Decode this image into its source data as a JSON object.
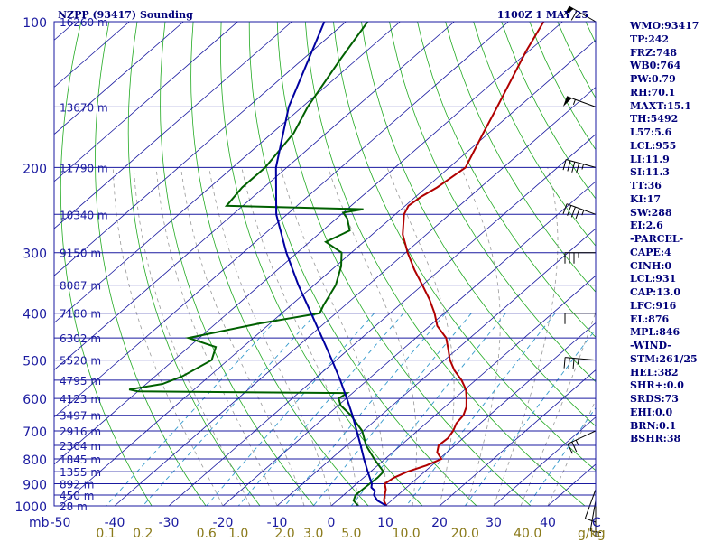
{
  "chart_data": {
    "type": "line",
    "chart_kind": "Skew-T log-P atmospheric sounding",
    "title_left": "NZPP (93417) Sounding",
    "title_right": "1100Z  1 MAY 25",
    "y_axis_unit": "mb",
    "pressure_levels": [
      100,
      200,
      300,
      400,
      500,
      600,
      700,
      800,
      900,
      1000
    ],
    "height_labels": [
      {
        "p": 100,
        "label": "16260 m"
      },
      {
        "p": 150,
        "label": "13670 m"
      },
      {
        "p": 200,
        "label": "11790 m"
      },
      {
        "p": 250,
        "label": "10340 m"
      },
      {
        "p": 300,
        "label": "9150 m"
      },
      {
        "p": 350,
        "label": "8087 m"
      },
      {
        "p": 400,
        "label": "7180 m"
      },
      {
        "p": 450,
        "label": "6302 m"
      },
      {
        "p": 500,
        "label": "5520 m"
      },
      {
        "p": 550,
        "label": "4795 m"
      },
      {
        "p": 600,
        "label": "4123 m"
      },
      {
        "p": 650,
        "label": "3497 m"
      },
      {
        "p": 700,
        "label": "2916 m"
      },
      {
        "p": 750,
        "label": "2364 m"
      },
      {
        "p": 800,
        "label": "1845 m"
      },
      {
        "p": 850,
        "label": "1355 m"
      },
      {
        "p": 900,
        "label": "892 m"
      },
      {
        "p": 950,
        "label": "450 m"
      },
      {
        "p": 1000,
        "label": "28 m"
      }
    ],
    "temperature_ticks": [
      -50,
      -40,
      -30,
      -20,
      -10,
      0,
      10,
      20,
      30,
      40
    ],
    "temperature_tick_labels": [
      "-50",
      "-40",
      "-30",
      "-20",
      "-10",
      "0",
      "10",
      "20",
      "30",
      "40"
    ],
    "temperature_unit": "C",
    "mixing_ratio_labels": [
      "0.1",
      "0.2",
      "0.6",
      "1.0",
      "2.0",
      "3.0",
      "5.0",
      "10.0",
      "20.0",
      "40.0"
    ],
    "mixing_ratio_values": [
      0.1,
      0.2,
      0.6,
      1.0,
      2.0,
      3.0,
      5.0,
      10.0,
      20.0,
      40.0
    ],
    "mixing_ratio_unit": "g/kg",
    "temp_range": [
      -50,
      50
    ],
    "pressure_range": [
      100,
      1000
    ],
    "series": [
      {
        "key": "temperature",
        "color": "#b00000",
        "points": [
          [
            1000,
            10.2
          ],
          [
            975,
            8.6
          ],
          [
            950,
            7.6
          ],
          [
            925,
            6.6
          ],
          [
            900,
            5.2
          ],
          [
            875,
            5.6
          ],
          [
            850,
            6.8
          ],
          [
            825,
            9.0
          ],
          [
            800,
            10.4
          ],
          [
            775,
            8.2
          ],
          [
            750,
            7.0
          ],
          [
            725,
            7.2
          ],
          [
            700,
            6.6
          ],
          [
            675,
            5.6
          ],
          [
            650,
            5.2
          ],
          [
            625,
            4.0
          ],
          [
            600,
            2.2
          ],
          [
            575,
            0.2
          ],
          [
            550,
            -2.6
          ],
          [
            525,
            -6.0
          ],
          [
            500,
            -9.0
          ],
          [
            475,
            -11.6
          ],
          [
            450,
            -14.4
          ],
          [
            425,
            -18.6
          ],
          [
            400,
            -21.8
          ],
          [
            375,
            -25.6
          ],
          [
            350,
            -30.0
          ],
          [
            325,
            -34.8
          ],
          [
            300,
            -39.6
          ],
          [
            275,
            -44.4
          ],
          [
            250,
            -48.4
          ],
          [
            240,
            -49.4
          ],
          [
            230,
            -49.0
          ],
          [
            220,
            -48.0
          ],
          [
            200,
            -47.0
          ],
          [
            170,
            -51.0
          ],
          [
            150,
            -54.0
          ],
          [
            130,
            -57.5
          ],
          [
            115,
            -60.5
          ],
          [
            100,
            -63.5
          ]
        ]
      },
      {
        "key": "dewpoint",
        "color": "#006000",
        "points": [
          [
            1000,
            5.0
          ],
          [
            975,
            3.0
          ],
          [
            950,
            2.2
          ],
          [
            900,
            2.4
          ],
          [
            875,
            2.6
          ],
          [
            850,
            2.4
          ],
          [
            800,
            -2.0
          ],
          [
            750,
            -6.4
          ],
          [
            700,
            -10.2
          ],
          [
            650,
            -15.6
          ],
          [
            620,
            -19.6
          ],
          [
            600,
            -21.4
          ],
          [
            585,
            -21.0
          ],
          [
            580,
            -60.0
          ],
          [
            575,
            -62.0
          ],
          [
            560,
            -57.0
          ],
          [
            540,
            -55.0
          ],
          [
            500,
            -53.0
          ],
          [
            470,
            -55.0
          ],
          [
            450,
            -62.0
          ],
          [
            420,
            -52.0
          ],
          [
            400,
            -43.0
          ],
          [
            385,
            -44.0
          ],
          [
            350,
            -46.0
          ],
          [
            320,
            -49.0
          ],
          [
            300,
            -51.8
          ],
          [
            285,
            -57.0
          ],
          [
            270,
            -55.0
          ],
          [
            255,
            -58.0
          ],
          [
            248,
            -60.0
          ],
          [
            244,
            -57.0
          ],
          [
            240,
            -83.0
          ],
          [
            220,
            -84.0
          ],
          [
            200,
            -84.0
          ],
          [
            170,
            -86.0
          ],
          [
            150,
            -89.0
          ],
          [
            120,
            -93.0
          ],
          [
            100,
            -96.0
          ]
        ]
      },
      {
        "key": "parcel",
        "color": "#0000a0",
        "points": [
          [
            1000,
            10.2
          ],
          [
            975,
            7.4
          ],
          [
            950,
            5.6
          ],
          [
            931,
            4.9
          ],
          [
            916,
            3.5
          ],
          [
            900,
            2.8
          ],
          [
            850,
            -0.5
          ],
          [
            800,
            -3.9
          ],
          [
            750,
            -7.4
          ],
          [
            700,
            -11.2
          ],
          [
            650,
            -15.3
          ],
          [
            600,
            -19.9
          ],
          [
            550,
            -25.0
          ],
          [
            500,
            -30.8
          ],
          [
            450,
            -37.3
          ],
          [
            400,
            -44.6
          ],
          [
            350,
            -52.9
          ],
          [
            300,
            -62.0
          ],
          [
            250,
            -72.0
          ],
          [
            200,
            -82.0
          ],
          [
            150,
            -92.5
          ],
          [
            100,
            -104.0
          ]
        ]
      }
    ],
    "wind_barbs": [
      {
        "p": 100,
        "dir": 300,
        "spd": 60
      },
      {
        "p": 150,
        "dir": 290,
        "spd": 55
      },
      {
        "p": 200,
        "dir": 285,
        "spd": 45
      },
      {
        "p": 250,
        "dir": 290,
        "spd": 45
      },
      {
        "p": 300,
        "dir": 270,
        "spd": 35
      },
      {
        "p": 400,
        "dir": 270,
        "spd": 10
      },
      {
        "p": 500,
        "dir": 275,
        "spd": 35
      },
      {
        "p": 700,
        "dir": 245,
        "spd": 25
      },
      {
        "p": 925,
        "dir": 200,
        "spd": 10
      },
      {
        "p": 975,
        "dir": 190,
        "spd": 10
      },
      {
        "p": 1000,
        "dir": 180,
        "spd": 5
      }
    ],
    "indices": [
      "WMO:93417",
      "TP:242",
      "FRZ:748",
      "WB0:764",
      "PW:0.79",
      "RH:70.1",
      "MAXT:15.1",
      "TH:5492",
      "L57:5.6",
      "LCL:955",
      "LI:11.9",
      "SI:11.3",
      "TT:36",
      "KI:17",
      "SW:288",
      "EI:2.6",
      "-PARCEL-",
      "CAPE:4",
      "CINH:0",
      "LCL:931",
      "CAP:13.0",
      "LFC:916",
      "EL:876",
      "MPL:846",
      "-WIND-",
      "STM:261/25",
      "HEL:382",
      "SHR+:0.0",
      "SRDS:73",
      "EHI:0.0",
      "BRN:0.1",
      "BSHR:38"
    ]
  }
}
